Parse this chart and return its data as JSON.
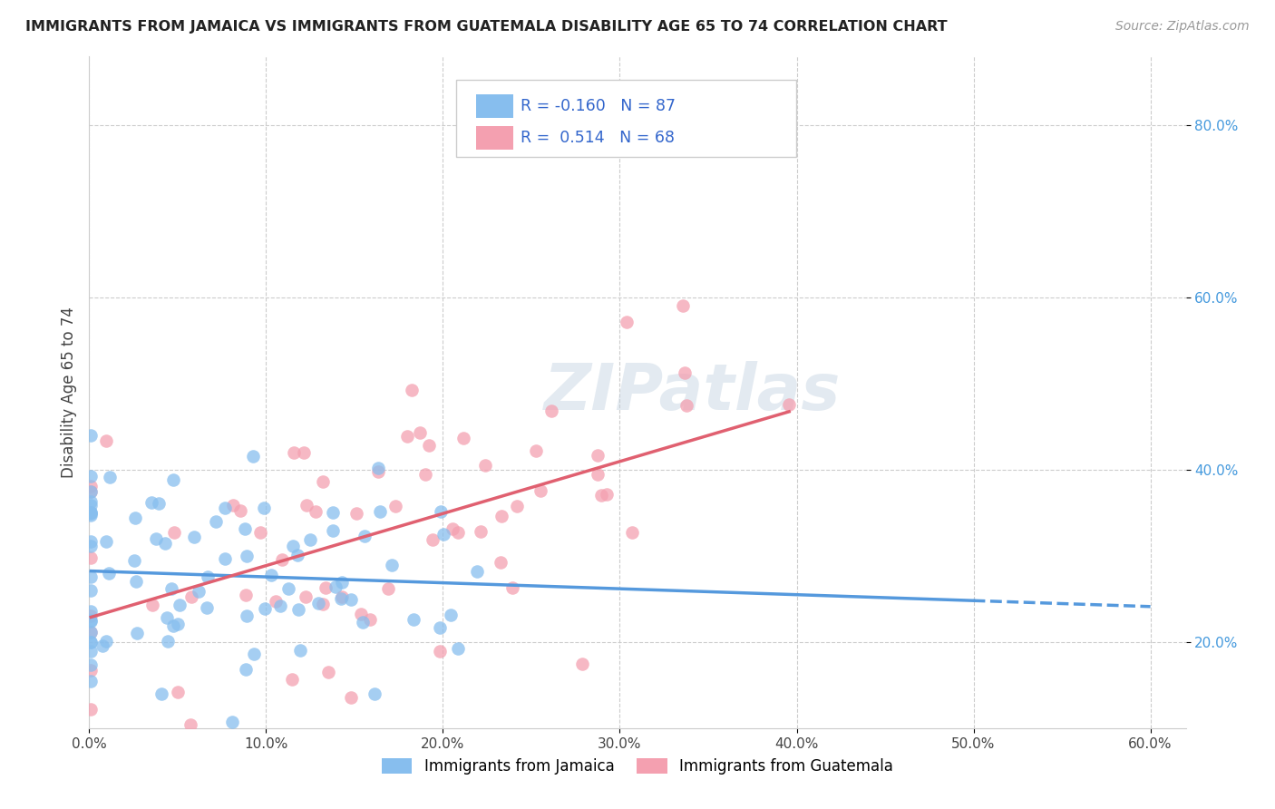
{
  "title": "IMMIGRANTS FROM JAMAICA VS IMMIGRANTS FROM GUATEMALA DISABILITY AGE 65 TO 74 CORRELATION CHART",
  "source": "Source: ZipAtlas.com",
  "ylabel": "Disability Age 65 to 74",
  "xlim": [
    0.0,
    0.62
  ],
  "ylim": [
    0.1,
    0.88
  ],
  "x_tick_labels": [
    "0.0%",
    "",
    "",
    "",
    "",
    "",
    "60.0%"
  ],
  "x_tick_vals": [
    0.0,
    0.1,
    0.2,
    0.3,
    0.4,
    0.5,
    0.6
  ],
  "y_tick_labels": [
    "20.0%",
    "40.0%",
    "60.0%",
    "80.0%"
  ],
  "y_tick_vals": [
    0.2,
    0.4,
    0.6,
    0.8
  ],
  "jamaica_color": "#87BEEE",
  "guatemala_color": "#F4A0B0",
  "jamaica_line_color": "#5599DD",
  "guatemala_line_color": "#E06070",
  "jamaica_R": -0.16,
  "jamaica_N": 87,
  "guatemala_R": 0.514,
  "guatemala_N": 68,
  "legend_jamaica": "Immigrants from Jamaica",
  "legend_guatemala": "Immigrants from Guatemala",
  "watermark": "ZIPatlas"
}
